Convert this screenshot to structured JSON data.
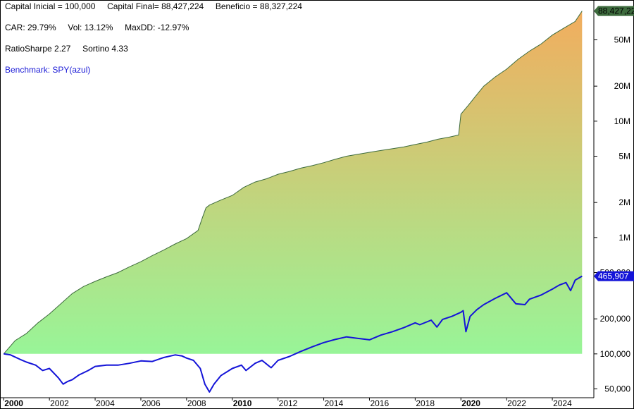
{
  "stats": {
    "line1": "Capital Inicial = 100,000     Capital Final= 88,427,224     Beneficio = 88,327,224",
    "line2": "CAR: 29.79%     Vol: 13.12%     MaxDD: -12.97%",
    "line3": "RatioSharpe 2.27     Sortino 4.33",
    "benchmark": "Benchmark: SPY(azul)"
  },
  "colors": {
    "equity_line": "#3d6b3d",
    "fill_top": "#f2ad5e",
    "fill_bottom": "#98f598",
    "benchmark_line": "#1414d8",
    "equity_flag": "#3d6b3d",
    "benchmark_flag": "#1414d8"
  },
  "chart_data": {
    "type": "area",
    "yscale": "log",
    "ylim": [
      42000,
      110000000
    ],
    "xlim": [
      1999.9,
      2025.6
    ],
    "y_ticks": [
      {
        "value": 50000,
        "label": "50,000"
      },
      {
        "value": 100000,
        "label": "100,000"
      },
      {
        "value": 200000,
        "label": "200,000"
      },
      {
        "value": 500000,
        "label": "500,000"
      },
      {
        "value": 1000000,
        "label": "1M"
      },
      {
        "value": 2000000,
        "label": "2M"
      },
      {
        "value": 5000000,
        "label": "5M"
      },
      {
        "value": 10000000,
        "label": "10M"
      },
      {
        "value": 20000000,
        "label": "20M"
      },
      {
        "value": 50000000,
        "label": "50M"
      }
    ],
    "x_ticks": [
      {
        "value": 2000,
        "label": "2000",
        "bold": true
      },
      {
        "value": 2002,
        "label": "2002",
        "bold": false
      },
      {
        "value": 2004,
        "label": "2004",
        "bold": false
      },
      {
        "value": 2006,
        "label": "2006",
        "bold": false
      },
      {
        "value": 2008,
        "label": "2008",
        "bold": false
      },
      {
        "value": 2010,
        "label": "2010",
        "bold": true
      },
      {
        "value": 2012,
        "label": "2012",
        "bold": false
      },
      {
        "value": 2014,
        "label": "2014",
        "bold": false
      },
      {
        "value": 2016,
        "label": "2016",
        "bold": false
      },
      {
        "value": 2018,
        "label": "2018",
        "bold": false
      },
      {
        "value": 2020,
        "label": "2020",
        "bold": true
      },
      {
        "value": 2022,
        "label": "2022",
        "bold": false
      },
      {
        "value": 2024,
        "label": "2024",
        "bold": false
      }
    ],
    "series": [
      {
        "name": "Capital",
        "last_label": "88,427,224",
        "x": [
          2000.0,
          2000.5,
          2001.0,
          2001.5,
          2002.0,
          2002.5,
          2003.0,
          2003.5,
          2004.0,
          2004.5,
          2005.0,
          2005.5,
          2006.0,
          2006.5,
          2007.0,
          2007.5,
          2008.0,
          2008.5,
          2008.7,
          2008.85,
          2009.0,
          2009.5,
          2010.0,
          2010.5,
          2011.0,
          2011.5,
          2012.0,
          2012.5,
          2013.0,
          2013.5,
          2014.0,
          2014.5,
          2015.0,
          2015.5,
          2016.0,
          2016.5,
          2017.0,
          2017.5,
          2018.0,
          2018.5,
          2019.0,
          2019.5,
          2019.9,
          2020.0,
          2020.3,
          2020.6,
          2021.0,
          2021.5,
          2022.0,
          2022.5,
          2023.0,
          2023.5,
          2024.0,
          2024.5,
          2025.0,
          2025.3
        ],
        "values": [
          100000,
          130000,
          150000,
          185000,
          220000,
          270000,
          330000,
          380000,
          420000,
          460000,
          500000,
          560000,
          620000,
          700000,
          780000,
          880000,
          980000,
          1150000,
          1500000,
          1800000,
          1900000,
          2100000,
          2300000,
          2700000,
          3000000,
          3200000,
          3500000,
          3700000,
          3950000,
          4150000,
          4400000,
          4700000,
          5000000,
          5200000,
          5400000,
          5600000,
          5800000,
          6000000,
          6300000,
          6600000,
          7000000,
          7300000,
          7600000,
          11500000,
          13500000,
          16000000,
          20000000,
          24000000,
          28000000,
          34000000,
          40000000,
          46000000,
          55000000,
          63000000,
          72000000,
          88427224
        ]
      },
      {
        "name": "SPY(azul)",
        "last_label": "465,907",
        "x": [
          2000.0,
          2000.3,
          2000.7,
          2001.0,
          2001.4,
          2001.7,
          2002.0,
          2002.4,
          2002.6,
          2002.8,
          2003.0,
          2003.3,
          2003.7,
          2004.0,
          2004.5,
          2005.0,
          2005.5,
          2006.0,
          2006.5,
          2007.0,
          2007.5,
          2007.8,
          2008.0,
          2008.3,
          2008.6,
          2008.8,
          2009.0,
          2009.2,
          2009.5,
          2010.0,
          2010.4,
          2010.6,
          2011.0,
          2011.3,
          2011.7,
          2012.0,
          2012.5,
          2013.0,
          2013.5,
          2014.0,
          2014.5,
          2015.0,
          2015.6,
          2016.0,
          2016.5,
          2017.0,
          2017.5,
          2018.0,
          2018.2,
          2018.7,
          2018.95,
          2019.2,
          2019.6,
          2020.0,
          2020.1,
          2020.22,
          2020.4,
          2020.7,
          2021.0,
          2021.5,
          2022.0,
          2022.4,
          2022.8,
          2023.0,
          2023.5,
          2024.0,
          2024.3,
          2024.6,
          2024.8,
          2025.0,
          2025.3
        ],
        "values": [
          100000,
          98000,
          90000,
          85000,
          80000,
          72000,
          75000,
          62000,
          55000,
          58000,
          60000,
          66000,
          72000,
          78000,
          80000,
          80000,
          83000,
          87000,
          86000,
          93000,
          98000,
          96000,
          92000,
          88000,
          75000,
          55000,
          47000,
          55000,
          65000,
          75000,
          80000,
          72000,
          83000,
          88000,
          76000,
          88000,
          95000,
          105000,
          115000,
          125000,
          133000,
          140000,
          135000,
          132000,
          145000,
          155000,
          168000,
          185000,
          178000,
          195000,
          170000,
          198000,
          210000,
          228000,
          235000,
          155000,
          210000,
          240000,
          265000,
          300000,
          335000,
          270000,
          265000,
          295000,
          320000,
          360000,
          390000,
          410000,
          350000,
          430000,
          465907
        ]
      }
    ]
  }
}
